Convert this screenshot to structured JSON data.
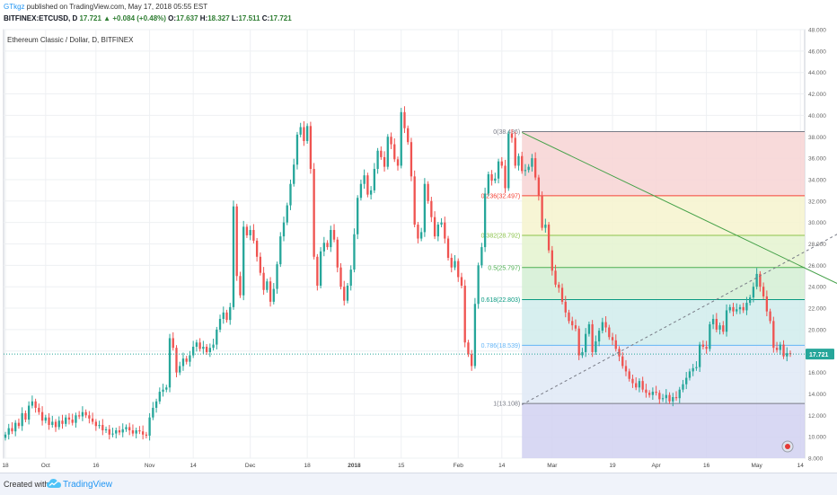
{
  "header": {
    "user": "GTkgz",
    "published": " published on TradingView.com, May 17, 2018 05:55 EST",
    "symbol": "BITFINEX:ETCUSD, D",
    "last": "17.721",
    "change": "+0.084 (+0.48%)",
    "open_label": "O:",
    "open": "17.637",
    "high_label": "H:",
    "high": "18.327",
    "low_label": "L:",
    "low": "17.511",
    "close_label": "C:",
    "close": "17.721"
  },
  "footer": {
    "created_with": "Created with",
    "brand": "TradingView",
    "logo_icon": "tradingview-cloud-icon"
  },
  "chart_data": {
    "type": "candlestick",
    "title": "Ethereum Classic / Dollar, D, BITFINEX",
    "ylim": [
      8,
      48
    ],
    "yticks": [
      "8.000",
      "10.000",
      "12.000",
      "14.000",
      "16.000",
      "18.000",
      "20.000",
      "22.000",
      "24.000",
      "26.000",
      "28.000",
      "30.000",
      "32.000",
      "34.000",
      "36.000",
      "38.000",
      "40.000",
      "42.000",
      "44.000",
      "46.000",
      "48.000"
    ],
    "x_ticks": [
      {
        "label": "18",
        "day": 0
      },
      {
        "label": "Oct",
        "day": 12
      },
      {
        "label": "16",
        "day": 27
      },
      {
        "label": "Nov",
        "day": 43
      },
      {
        "label": "14",
        "day": 56
      },
      {
        "label": "Dec",
        "day": 73
      },
      {
        "label": "18",
        "day": 90
      },
      {
        "label": "2018",
        "day": 104
      },
      {
        "label": "15",
        "day": 118
      },
      {
        "label": "Feb",
        "day": 135
      },
      {
        "label": "14",
        "day": 148
      },
      {
        "label": "Mar",
        "day": 163
      },
      {
        "label": "19",
        "day": 181
      },
      {
        "label": "Apr",
        "day": 194
      },
      {
        "label": "16",
        "day": 209
      },
      {
        "label": "May",
        "day": 224
      },
      {
        "label": "14",
        "day": 237
      }
    ],
    "last_price": "17.721",
    "last_price_value": 17.721,
    "up_color": "#26a69a",
    "down_color": "#ef5350",
    "closes": [
      10.2,
      10.8,
      10.5,
      11.3,
      11.0,
      12.2,
      11.6,
      12.9,
      13.3,
      12.7,
      12.3,
      11.5,
      11.8,
      11.1,
      11.4,
      10.9,
      11.5,
      11.2,
      11.8,
      11.6,
      11.3,
      12.0,
      11.9,
      12.3,
      12.0,
      11.7,
      11.4,
      11.0,
      11.1,
      10.6,
      10.7,
      10.2,
      10.3,
      10.6,
      10.4,
      10.7,
      10.9,
      10.6,
      10.3,
      10.6,
      10.5,
      10.2,
      10.1,
      11.8,
      12.7,
      13.3,
      14.2,
      14.4,
      14.6,
      19.2,
      18.3,
      16.0,
      16.6,
      17.3,
      17.0,
      17.6,
      18.4,
      18.8,
      18.2,
      18.4,
      17.9,
      18.3,
      18.6,
      20.0,
      21.0,
      21.6,
      20.9,
      22.1,
      31.5,
      25.0,
      23.2,
      29.6,
      28.8,
      29.3,
      28.3,
      26.8,
      25.3,
      23.7,
      24.5,
      22.6,
      23.8,
      26.1,
      28.7,
      30.0,
      31.6,
      33.6,
      35.4,
      38.2,
      38.9,
      37.6,
      39.0,
      35.0,
      26.8,
      24.1,
      27.3,
      28.1,
      27.7,
      29.3,
      28.4,
      25.8,
      24.0,
      22.7,
      24.1,
      25.6,
      28.9,
      32.3,
      33.6,
      34.4,
      32.6,
      33.0,
      35.0,
      36.7,
      36.1,
      35.2,
      38.0,
      37.3,
      35.9,
      35.3,
      40.3,
      38.8,
      37.5,
      34.3,
      29.8,
      28.5,
      29.1,
      33.6,
      32.0,
      30.5,
      28.7,
      29.8,
      30.0,
      28.5,
      26.7,
      25.8,
      26.4,
      24.9,
      24.1,
      18.8,
      17.7,
      16.6,
      22.4,
      26.0,
      27.7,
      32.7,
      34.5,
      33.9,
      34.1,
      35.7,
      35.3,
      33.2,
      38.3,
      37.9,
      35.3,
      36.2,
      34.8,
      34.9,
      35.2,
      36.0,
      34.2,
      32.5,
      29.5,
      29.8,
      27.4,
      25.5,
      24.2,
      23.9,
      22.6,
      21.6,
      20.8,
      20.4,
      20.1,
      17.6,
      17.9,
      19.6,
      20.5,
      17.9,
      18.9,
      19.9,
      20.7,
      20.2,
      19.3,
      19.0,
      18.2,
      17.5,
      16.6,
      16.1,
      15.4,
      15.0,
      14.6,
      15.2,
      14.4,
      14.1,
      13.9,
      14.2,
      14.1,
      13.5,
      13.6,
      13.9,
      13.3,
      13.7,
      13.6,
      14.4,
      14.9,
      15.5,
      16.1,
      16.4,
      16.5,
      18.6,
      18.4,
      18.2,
      20.5,
      21.0,
      20.0,
      20.4,
      19.8,
      21.8,
      22.1,
      21.7,
      21.9,
      22.1,
      21.8,
      22.5,
      23.0,
      24.0,
      25.2,
      24.0,
      23.1,
      21.7,
      20.8,
      18.3,
      18.1,
      18.6,
      17.5,
      17.8,
      17.7
    ],
    "fibonacci": [
      {
        "label": "0(38.486)",
        "level": 38.486,
        "color": "#787b86"
      },
      {
        "label": "0.236(32.497)",
        "level": 32.497,
        "color": "#f44336"
      },
      {
        "label": "0.382(28.792)",
        "level": 28.792,
        "color": "#8bc34a"
      },
      {
        "label": "0.5(25.797)",
        "level": 25.797,
        "color": "#4caf50"
      },
      {
        "label": "0.618(22.803)",
        "level": 22.803,
        "color": "#089981"
      },
      {
        "label": "0.786(18.539)",
        "level": 18.539,
        "color": "#64b5f6"
      },
      {
        "label": "1(13.108)",
        "level": 13.108,
        "color": "#787b86"
      }
    ],
    "fib_zone_colors": [
      "#f7d3d3",
      "#f6f3ce",
      "#e4f3cf",
      "#d3efd4",
      "#d0ecec",
      "#dfe9f6",
      "#dedede",
      "#d1d1f1"
    ],
    "trendline": {
      "from": [
        154,
        38.4
      ],
      "to": [
        258,
        22.8
      ],
      "color": "#43a047"
    },
    "dashed_line": {
      "from": [
        154,
        13.0
      ],
      "to": [
        258,
        30.6
      ],
      "color": "#787b86"
    },
    "grid": true
  }
}
